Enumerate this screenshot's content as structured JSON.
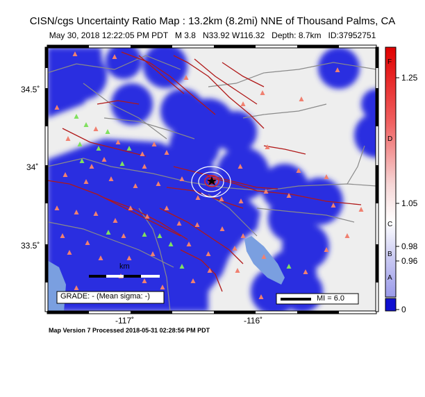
{
  "header": {
    "title": "CISN/cgs Uncertainty Ratio Map : 13.2km (8.2mi) NNE of Thousand Palms, CA",
    "subtitle": "May 30, 2018 12:22:05 PM PDT   M 3.8   N33.92 W116.32   Depth: 8.7km   ID:37952751"
  },
  "map": {
    "lat_ticks": [
      "34.5˚",
      "34˚",
      "33.5˚"
    ],
    "lon_ticks": [
      "-117˚",
      "-116˚"
    ],
    "scale_bar_label": "km",
    "grade_box": "GRADE: - (Mean sigma: -)",
    "mi_legend": "MI = 6.0",
    "colors": {
      "uncertainty_blue": "#2a2ee0",
      "land": "#eeeeee",
      "water": "#7a9fe0",
      "fault": "#b01818",
      "road": "#8a8a8a",
      "station_triangle": "#f08070",
      "station_green": "#80e060"
    }
  },
  "colorbar": {
    "letter_ticks": [
      "F",
      "D",
      "C",
      "B",
      "A"
    ],
    "value_ticks": [
      "1.25",
      "1.05",
      "0.98",
      "0.96",
      "0"
    ]
  },
  "footer": {
    "text": "Map Version 7 Processed 2018-05-31 02:28:56 PM PDT"
  }
}
